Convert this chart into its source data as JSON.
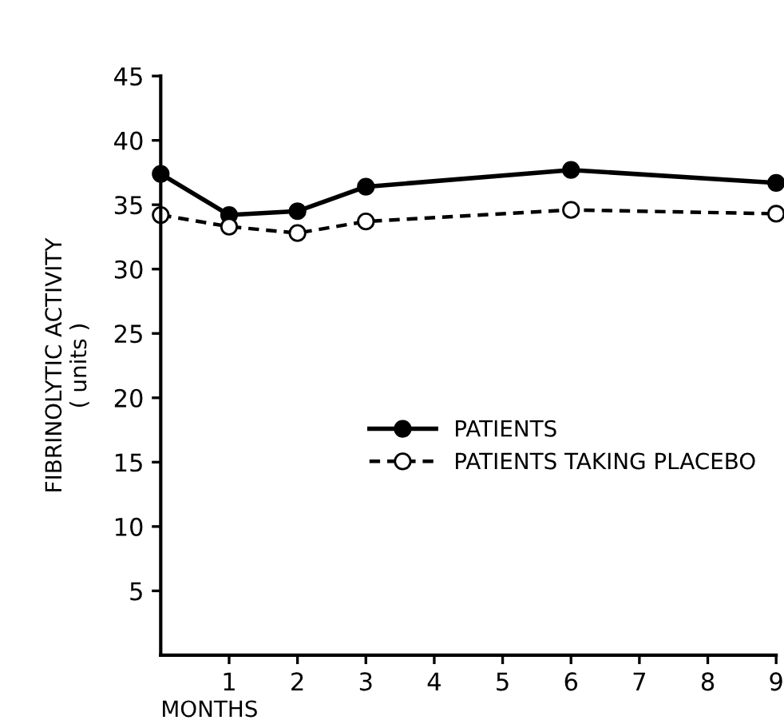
{
  "chart_data": {
    "type": "line",
    "xlabel": "MONTHS",
    "ylabel": "FIBRINOLYTIC ACTIVITY\n( units )",
    "x": [
      0,
      1,
      2,
      3,
      6,
      9
    ],
    "series": [
      {
        "name": "PATIENTS",
        "color": "#000000",
        "values": [
          37.4,
          34.2,
          34.5,
          36.4,
          37.7,
          36.7
        ],
        "line_style": "solid"
      },
      {
        "name": "PATIENTS TAKING PLACEBO",
        "color": "#000000",
        "values": [
          34.2,
          33.3,
          32.8,
          33.7,
          34.6,
          34.3
        ],
        "line_style": "dashed"
      }
    ],
    "xlim": [
      0,
      9
    ],
    "ylim": [
      0,
      45
    ],
    "xticks": [
      1,
      2,
      3,
      4,
      5,
      6,
      7,
      8,
      9
    ],
    "yticks": [
      5,
      10,
      15,
      20,
      25,
      30,
      35,
      40,
      45
    ],
    "marker": "circle",
    "grid": false,
    "legend": "center right"
  }
}
